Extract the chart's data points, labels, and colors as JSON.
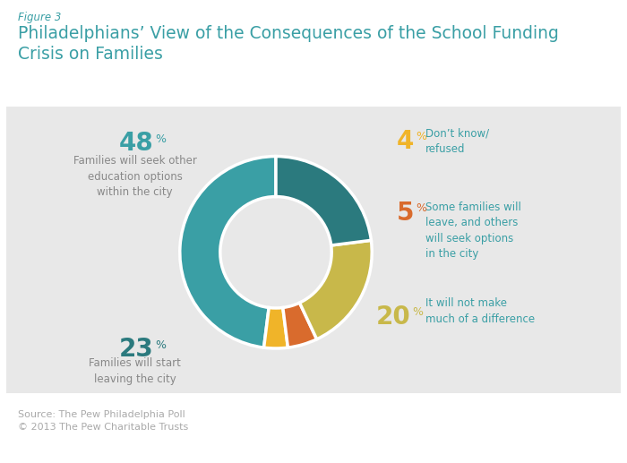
{
  "figure_label": "Figure 3",
  "title": "Philadelphians’ View of the Consequences of the School Funding\nCrisis on Families",
  "title_color": "#3a9fa5",
  "figure_label_color": "#3a9fa5",
  "slices": [
    {
      "label": "Families will seek other\neducation options\nwithin the city",
      "value": 48,
      "color": "#3a9fa5",
      "pct_color": "#3a9fa5",
      "label_side": "left"
    },
    {
      "label": "Don’t know/\nrefused",
      "value": 4,
      "color": "#f0b429",
      "pct_color": "#f0b429",
      "label_side": "right"
    },
    {
      "label": "Some families will\nleave, and others\nwill seek options\nin the city",
      "value": 5,
      "color": "#d96b2d",
      "pct_color": "#d96b2d",
      "label_side": "right"
    },
    {
      "label": "It will not make\nmuch of a difference",
      "value": 20,
      "color": "#c8b84a",
      "pct_color": "#c8b84a",
      "label_side": "right"
    },
    {
      "label": "Families will start\nleaving the city",
      "value": 23,
      "color": "#2b7a7e",
      "pct_color": "#2b7a7e",
      "label_side": "left"
    }
  ],
  "source_text": "Source: The Pew Philadelphia Poll\n© 2013 The Pew Charitable Trusts",
  "bg_chart_color": "#e8e8e8",
  "bg_outer_color": "#ffffff"
}
